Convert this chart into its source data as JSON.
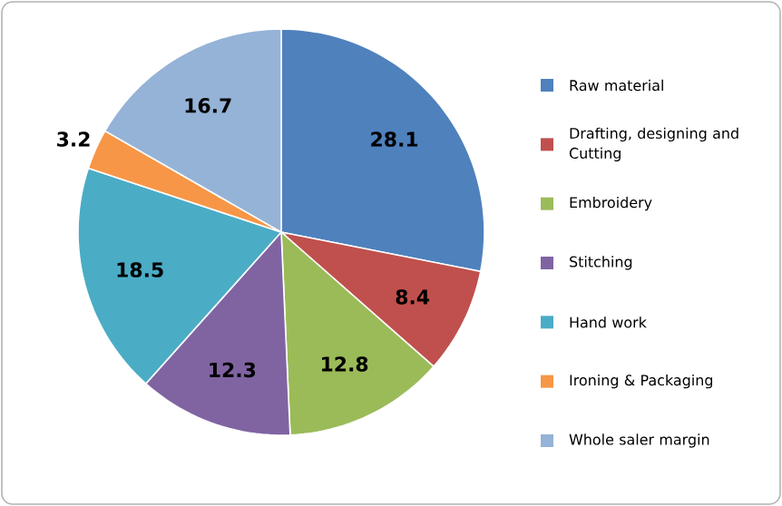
{
  "chart_data": {
    "type": "pie",
    "categories": [
      "Raw material",
      "Drafting, designing and Cutting",
      "Embroidery",
      "Stitching",
      "Hand work",
      "Ironing & Packaging",
      "Whole saler margin"
    ],
    "values": [
      28.1,
      8.4,
      12.8,
      12.3,
      18.5,
      3.2,
      16.7
    ],
    "colors": [
      "#4f81bd",
      "#c0504d",
      "#9bbb59",
      "#8064a2",
      "#4bacc6",
      "#f79646",
      "#95b3d7"
    ],
    "data_labels": true,
    "legend": "right"
  }
}
